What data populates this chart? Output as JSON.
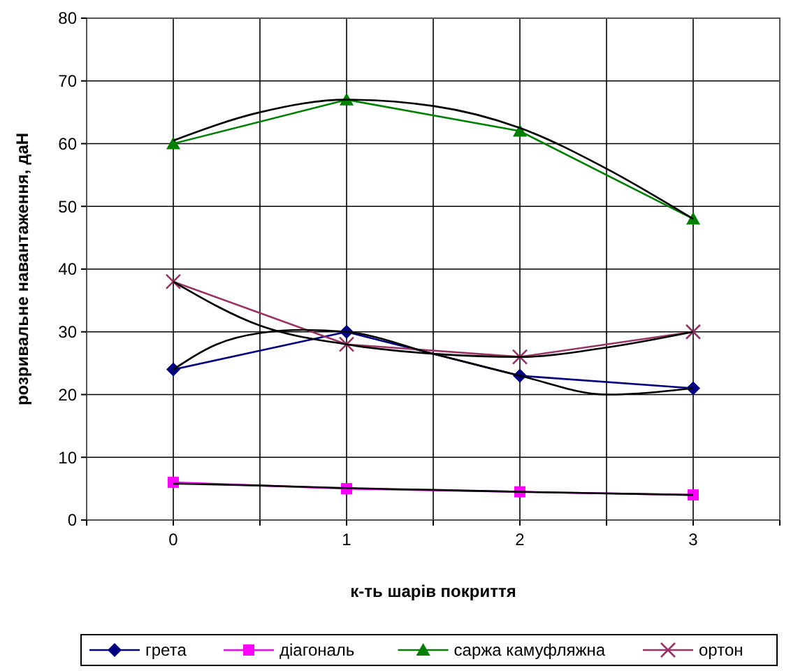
{
  "chart_data": {
    "type": "line",
    "xlabel": "к-ть шарів покриття",
    "ylabel": "розривальне навантаження, даН",
    "x": [
      0,
      1,
      2,
      3
    ],
    "xlim": [
      -0.5,
      3.5
    ],
    "xticks": [
      {
        "value": -0.5,
        "label": null
      },
      0,
      {
        "value": 0.5,
        "label": null
      },
      1,
      {
        "value": 1.5,
        "label": null
      },
      2,
      {
        "value": 2.5,
        "label": null
      },
      3,
      {
        "value": 3.5,
        "label": null
      }
    ],
    "ylim": [
      0,
      80
    ],
    "yticks": [
      0,
      10,
      20,
      30,
      40,
      50,
      60,
      70,
      80
    ],
    "grid": true,
    "legend": "bottom",
    "series": [
      {
        "name": "грета",
        "color": "#000080",
        "values": [
          24,
          30,
          23,
          21
        ],
        "marker": "diamond"
      },
      {
        "name": "діагональ",
        "color": "#ff00ff",
        "values": [
          6,
          5,
          4.5,
          4
        ],
        "marker": "square"
      },
      {
        "name": "саржа камуфляжна",
        "color": "#008000",
        "values": [
          60,
          67,
          62,
          48
        ],
        "marker": "triangle"
      },
      {
        "name": "ортон",
        "color": "#993366",
        "values": [
          38,
          28,
          26,
          30
        ],
        "marker": "cross"
      },
      {
        "color": "#000000",
        "x": [
          0,
          0.25,
          0.5,
          0.75,
          1,
          1.5,
          2,
          2.5,
          3
        ],
        "values": [
          24,
          28,
          29.8,
          30.3,
          30,
          26.5,
          23,
          20,
          21
        ],
        "marker": "none"
      },
      {
        "color": "#000000",
        "x": [
          0,
          0.5,
          1,
          1.5,
          2,
          3
        ],
        "values": [
          5.8,
          5.5,
          5.1,
          4.8,
          4.5,
          4
        ],
        "marker": "none"
      },
      {
        "color": "#000000",
        "x": [
          0,
          0.5,
          1,
          1.5,
          2,
          2.5,
          3
        ],
        "values": [
          60.5,
          65,
          67,
          66,
          62.5,
          56,
          48
        ],
        "marker": "none"
      },
      {
        "color": "#000000",
        "x": [
          0,
          0.5,
          1,
          1.5,
          2,
          2.5,
          3
        ],
        "values": [
          38,
          31,
          28,
          26.5,
          26,
          27.5,
          30
        ],
        "marker": "none"
      }
    ]
  }
}
